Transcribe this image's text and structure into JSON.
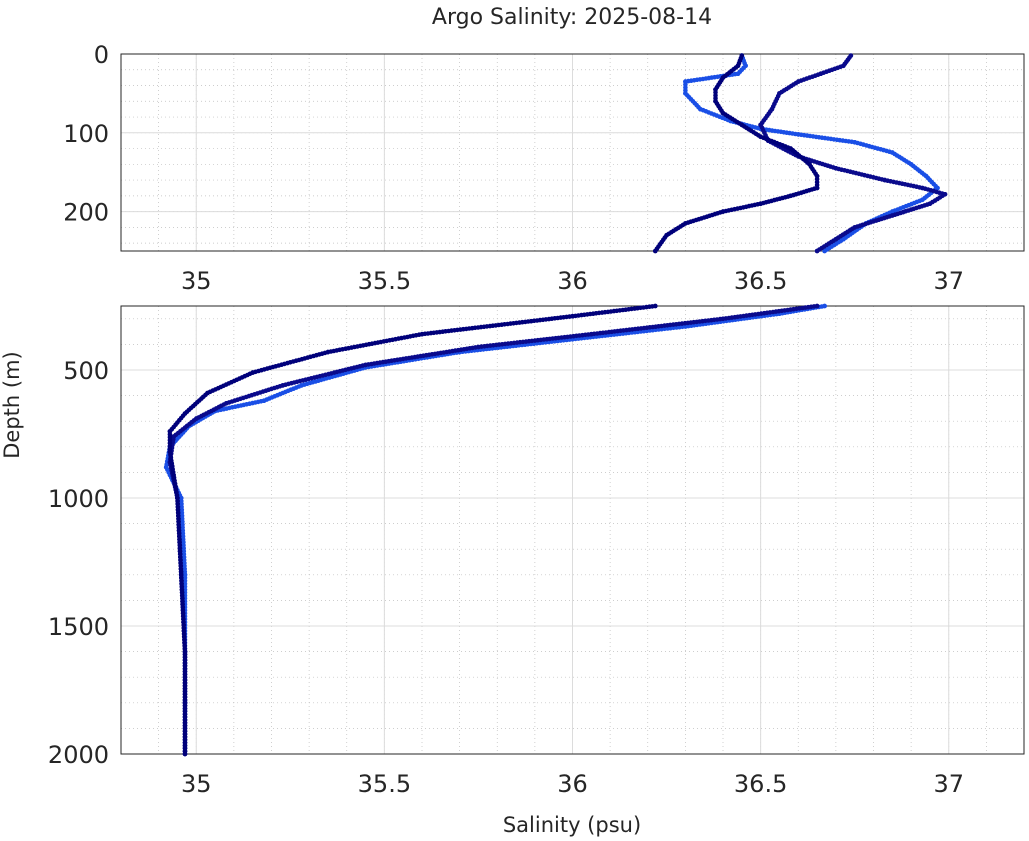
{
  "chart_data": {
    "type": "scatter",
    "title": "Argo Salinity: 2025-08-14",
    "xlabel": "Salinity (psu)",
    "ylabel": "Depth (m)",
    "grid": true,
    "colors": {
      "series_a": "#1a4fe6",
      "series_b": "#0a0a8c",
      "series_c": "#00007a",
      "grid_major": "#dcdcdc",
      "grid_minor": "#bdbdbd",
      "axis": "#262626"
    },
    "panels": [
      {
        "name": "upper",
        "xlim": [
          34.8,
          37.2
        ],
        "ylim": [
          250,
          0
        ],
        "y_reversed": true,
        "x_ticks": [
          35,
          35.5,
          36,
          36.5,
          37
        ],
        "x_tick_labels": [
          "35",
          "35.5",
          "36",
          "36.5",
          "37"
        ],
        "y_ticks": [
          0,
          100,
          200
        ],
        "y_tick_labels": [
          "0",
          "100",
          "200"
        ]
      },
      {
        "name": "lower",
        "xlim": [
          34.8,
          37.2
        ],
        "ylim": [
          2000,
          250
        ],
        "y_reversed": true,
        "x_ticks": [
          35,
          35.5,
          36,
          36.5,
          37
        ],
        "x_tick_labels": [
          "35",
          "35.5",
          "36",
          "36.5",
          "37"
        ],
        "y_ticks": [
          500,
          1000,
          1500,
          2000
        ],
        "y_tick_labels": [
          "500",
          "1000",
          "1500",
          "2000"
        ]
      }
    ],
    "series": [
      {
        "color": "#1a4fe6",
        "points": [
          [
            36.45,
            2
          ],
          [
            36.46,
            15
          ],
          [
            36.44,
            25
          ],
          [
            36.3,
            35
          ],
          [
            36.3,
            50
          ],
          [
            36.34,
            70
          ],
          [
            36.42,
            85
          ],
          [
            36.5,
            95
          ],
          [
            36.6,
            102
          ],
          [
            36.75,
            112
          ],
          [
            36.85,
            125
          ],
          [
            36.9,
            140
          ],
          [
            36.94,
            155
          ],
          [
            36.97,
            170
          ],
          [
            36.93,
            185
          ],
          [
            36.85,
            200
          ],
          [
            36.78,
            215
          ],
          [
            36.72,
            235
          ],
          [
            36.67,
            250
          ],
          [
            36.55,
            280
          ],
          [
            36.3,
            330
          ],
          [
            36.0,
            380
          ],
          [
            35.7,
            430
          ],
          [
            35.45,
            490
          ],
          [
            35.28,
            560
          ],
          [
            35.18,
            620
          ],
          [
            35.05,
            660
          ],
          [
            34.98,
            720
          ],
          [
            34.93,
            800
          ],
          [
            34.92,
            880
          ],
          [
            34.96,
            1000
          ],
          [
            34.97,
            1300
          ],
          [
            34.97,
            1600
          ],
          [
            34.97,
            1800
          ],
          [
            34.97,
            2000
          ]
        ]
      },
      {
        "color": "#0a0a8c",
        "points": [
          [
            36.74,
            2
          ],
          [
            36.72,
            15
          ],
          [
            36.66,
            25
          ],
          [
            36.6,
            35
          ],
          [
            36.55,
            50
          ],
          [
            36.53,
            70
          ],
          [
            36.5,
            90
          ],
          [
            36.52,
            110
          ],
          [
            36.6,
            130
          ],
          [
            36.7,
            145
          ],
          [
            36.83,
            160
          ],
          [
            36.93,
            170
          ],
          [
            36.99,
            178
          ],
          [
            36.95,
            190
          ],
          [
            36.85,
            205
          ],
          [
            36.75,
            220
          ],
          [
            36.7,
            235
          ],
          [
            36.65,
            250
          ],
          [
            36.4,
            300
          ],
          [
            36.05,
            360
          ],
          [
            35.75,
            410
          ],
          [
            35.45,
            480
          ],
          [
            35.23,
            560
          ],
          [
            35.08,
            630
          ],
          [
            35.0,
            690
          ],
          [
            34.94,
            760
          ],
          [
            34.93,
            860
          ],
          [
            34.95,
            1000
          ],
          [
            34.96,
            1300
          ],
          [
            34.97,
            1600
          ],
          [
            34.97,
            1800
          ],
          [
            34.97,
            2000
          ]
        ]
      },
      {
        "color": "#00007a",
        "points": [
          [
            36.45,
            2
          ],
          [
            36.44,
            15
          ],
          [
            36.4,
            30
          ],
          [
            36.38,
            45
          ],
          [
            36.38,
            60
          ],
          [
            36.4,
            75
          ],
          [
            36.45,
            90
          ],
          [
            36.5,
            105
          ],
          [
            36.58,
            120
          ],
          [
            36.63,
            140
          ],
          [
            36.65,
            155
          ],
          [
            36.65,
            170
          ],
          [
            36.58,
            180
          ],
          [
            36.5,
            190
          ],
          [
            36.4,
            200
          ],
          [
            36.3,
            215
          ],
          [
            36.25,
            230
          ],
          [
            36.22,
            250
          ],
          [
            36.0,
            290
          ],
          [
            35.6,
            360
          ],
          [
            35.35,
            430
          ],
          [
            35.15,
            510
          ],
          [
            35.03,
            590
          ],
          [
            34.97,
            670
          ],
          [
            34.93,
            740
          ],
          [
            34.93,
            820
          ],
          [
            34.95,
            1000
          ],
          [
            34.96,
            1300
          ],
          [
            34.97,
            1600
          ],
          [
            34.97,
            1800
          ],
          [
            34.97,
            2000
          ]
        ]
      }
    ]
  }
}
